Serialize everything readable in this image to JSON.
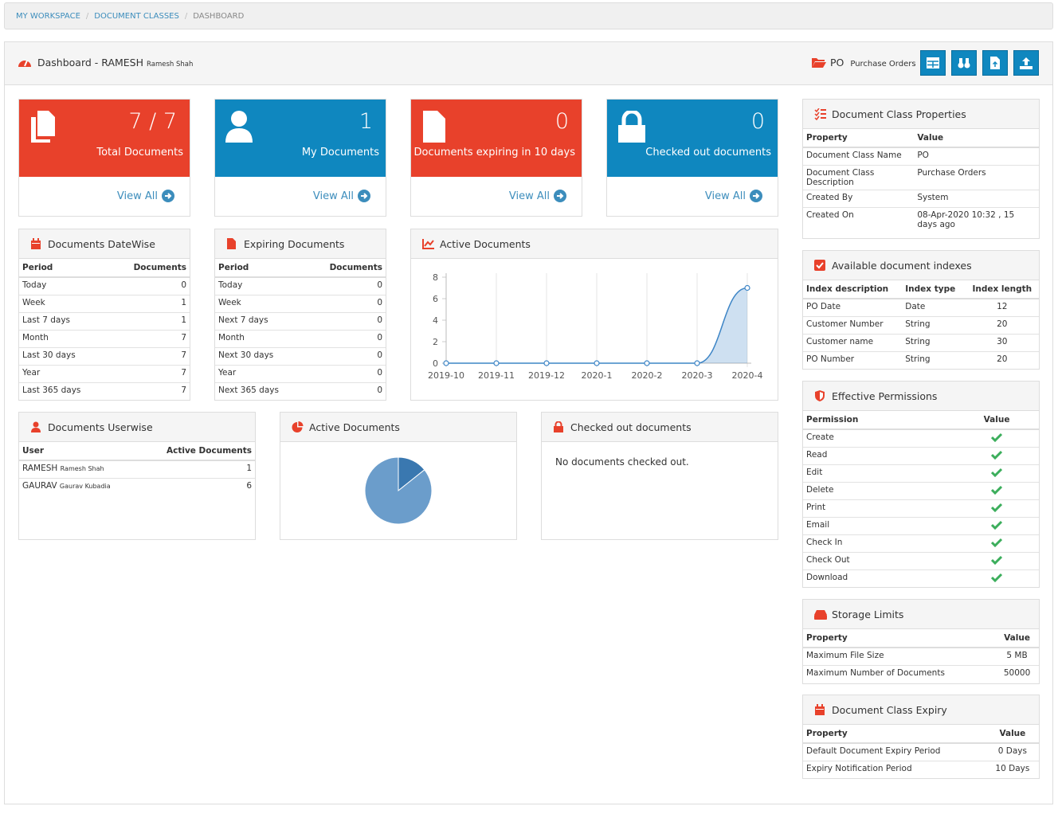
{
  "breadcrumb": [
    "MY WORKSPACE",
    "DOCUMENT CLASSES",
    "DASHBOARD"
  ],
  "header": {
    "title": "Dashboard - RAMESH",
    "user_full_name": "Ramesh Shah",
    "class_code": "PO",
    "class_name": "Purchase Orders"
  },
  "stat_cards": [
    {
      "value": "7 / 7",
      "label": "Total Documents",
      "link": "View All",
      "color": "#e8412b"
    },
    {
      "value": 1,
      "label": "My Documents",
      "link": "View All",
      "color": "#0f87bf"
    },
    {
      "value": 0,
      "label": "Documents expiring in 10 days",
      "link": "View All",
      "color": "#e8412b"
    },
    {
      "value": 0,
      "label": "Checked out documents",
      "link": "View All",
      "color": "#0f87bf"
    }
  ],
  "datewise": {
    "title": "Documents DateWise",
    "columns": [
      "Period",
      "Documents"
    ],
    "rows": [
      [
        "Today",
        0
      ],
      [
        "Week",
        1
      ],
      [
        "Last 7 days",
        1
      ],
      [
        "Month",
        7
      ],
      [
        "Last 30 days",
        7
      ],
      [
        "Year",
        7
      ],
      [
        "Last 365 days",
        7
      ]
    ]
  },
  "expiring": {
    "title": "Expiring Documents",
    "columns": [
      "Period",
      "Documents"
    ],
    "rows": [
      [
        "Today",
        0
      ],
      [
        "Week",
        0
      ],
      [
        "Next 7 days",
        0
      ],
      [
        "Month",
        0
      ],
      [
        "Next 30 days",
        0
      ],
      [
        "Year",
        0
      ],
      [
        "Next 365 days",
        0
      ]
    ]
  },
  "userwise": {
    "title": "Documents Userwise",
    "columns": [
      "User",
      "Active Documents"
    ],
    "rows": [
      [
        {
          "user": "RAMESH",
          "full_name": "Ramesh Shah"
        },
        1
      ],
      [
        {
          "user": "GAURAV",
          "full_name": "Gaurav Kubadia"
        },
        6
      ]
    ]
  },
  "checked_out": {
    "title": "Checked out documents",
    "message": "No documents checked out."
  },
  "chart_data": [
    {
      "type": "line",
      "title": "Active Documents",
      "x": [
        "2019-10",
        "2019-11",
        "2019-12",
        "2020-1",
        "2020-2",
        "2020-3",
        "2020-4"
      ],
      "values": [
        0,
        0,
        0,
        0,
        0,
        0,
        7
      ],
      "ylim": [
        0,
        8
      ],
      "yticks": [
        0,
        2,
        4,
        6,
        8
      ],
      "color": "#3d85c6",
      "grid": true
    },
    {
      "type": "pie",
      "title": "Active Documents",
      "values": [
        1,
        6
      ],
      "colors": [
        "#3a78b0",
        "#6b9dcb"
      ]
    }
  ],
  "class_properties": {
    "title": "Document Class Properties",
    "columns": [
      "Property",
      "Value"
    ],
    "rows": [
      [
        "Document Class Name",
        "PO"
      ],
      [
        "Document Class Description",
        "Purchase Orders"
      ],
      [
        "Created By",
        "System"
      ],
      [
        "Created On",
        "08-Apr-2020 10:32 , 15 days ago"
      ]
    ]
  },
  "indexes": {
    "title": "Available document indexes",
    "columns": [
      "Index description",
      "Index type",
      "Index length"
    ],
    "rows": [
      [
        "PO Date",
        "Date",
        12
      ],
      [
        "Customer Number",
        "String",
        20
      ],
      [
        "Customer name",
        "String",
        30
      ],
      [
        "PO Number",
        "String",
        20
      ]
    ]
  },
  "permissions": {
    "title": "Effective Permissions",
    "columns": [
      "Permission",
      "Value"
    ],
    "rows": [
      [
        "Create",
        true
      ],
      [
        "Read",
        true
      ],
      [
        "Edit",
        true
      ],
      [
        "Delete",
        true
      ],
      [
        "Print",
        true
      ],
      [
        "Email",
        true
      ],
      [
        "Check In",
        true
      ],
      [
        "Check Out",
        true
      ],
      [
        "Download",
        true
      ]
    ]
  },
  "storage": {
    "title": "Storage Limits",
    "columns": [
      "Property",
      "Value"
    ],
    "rows": [
      [
        "Maximum File Size",
        "5 MB"
      ],
      [
        "Maximum Number of Documents",
        50000
      ]
    ]
  },
  "expiry": {
    "title": "Document Class Expiry",
    "columns": [
      "Property",
      "Value"
    ],
    "rows": [
      [
        "Default Document Expiry Period",
        "0 Days"
      ],
      [
        "Expiry Notification Period",
        "10 Days"
      ]
    ]
  }
}
